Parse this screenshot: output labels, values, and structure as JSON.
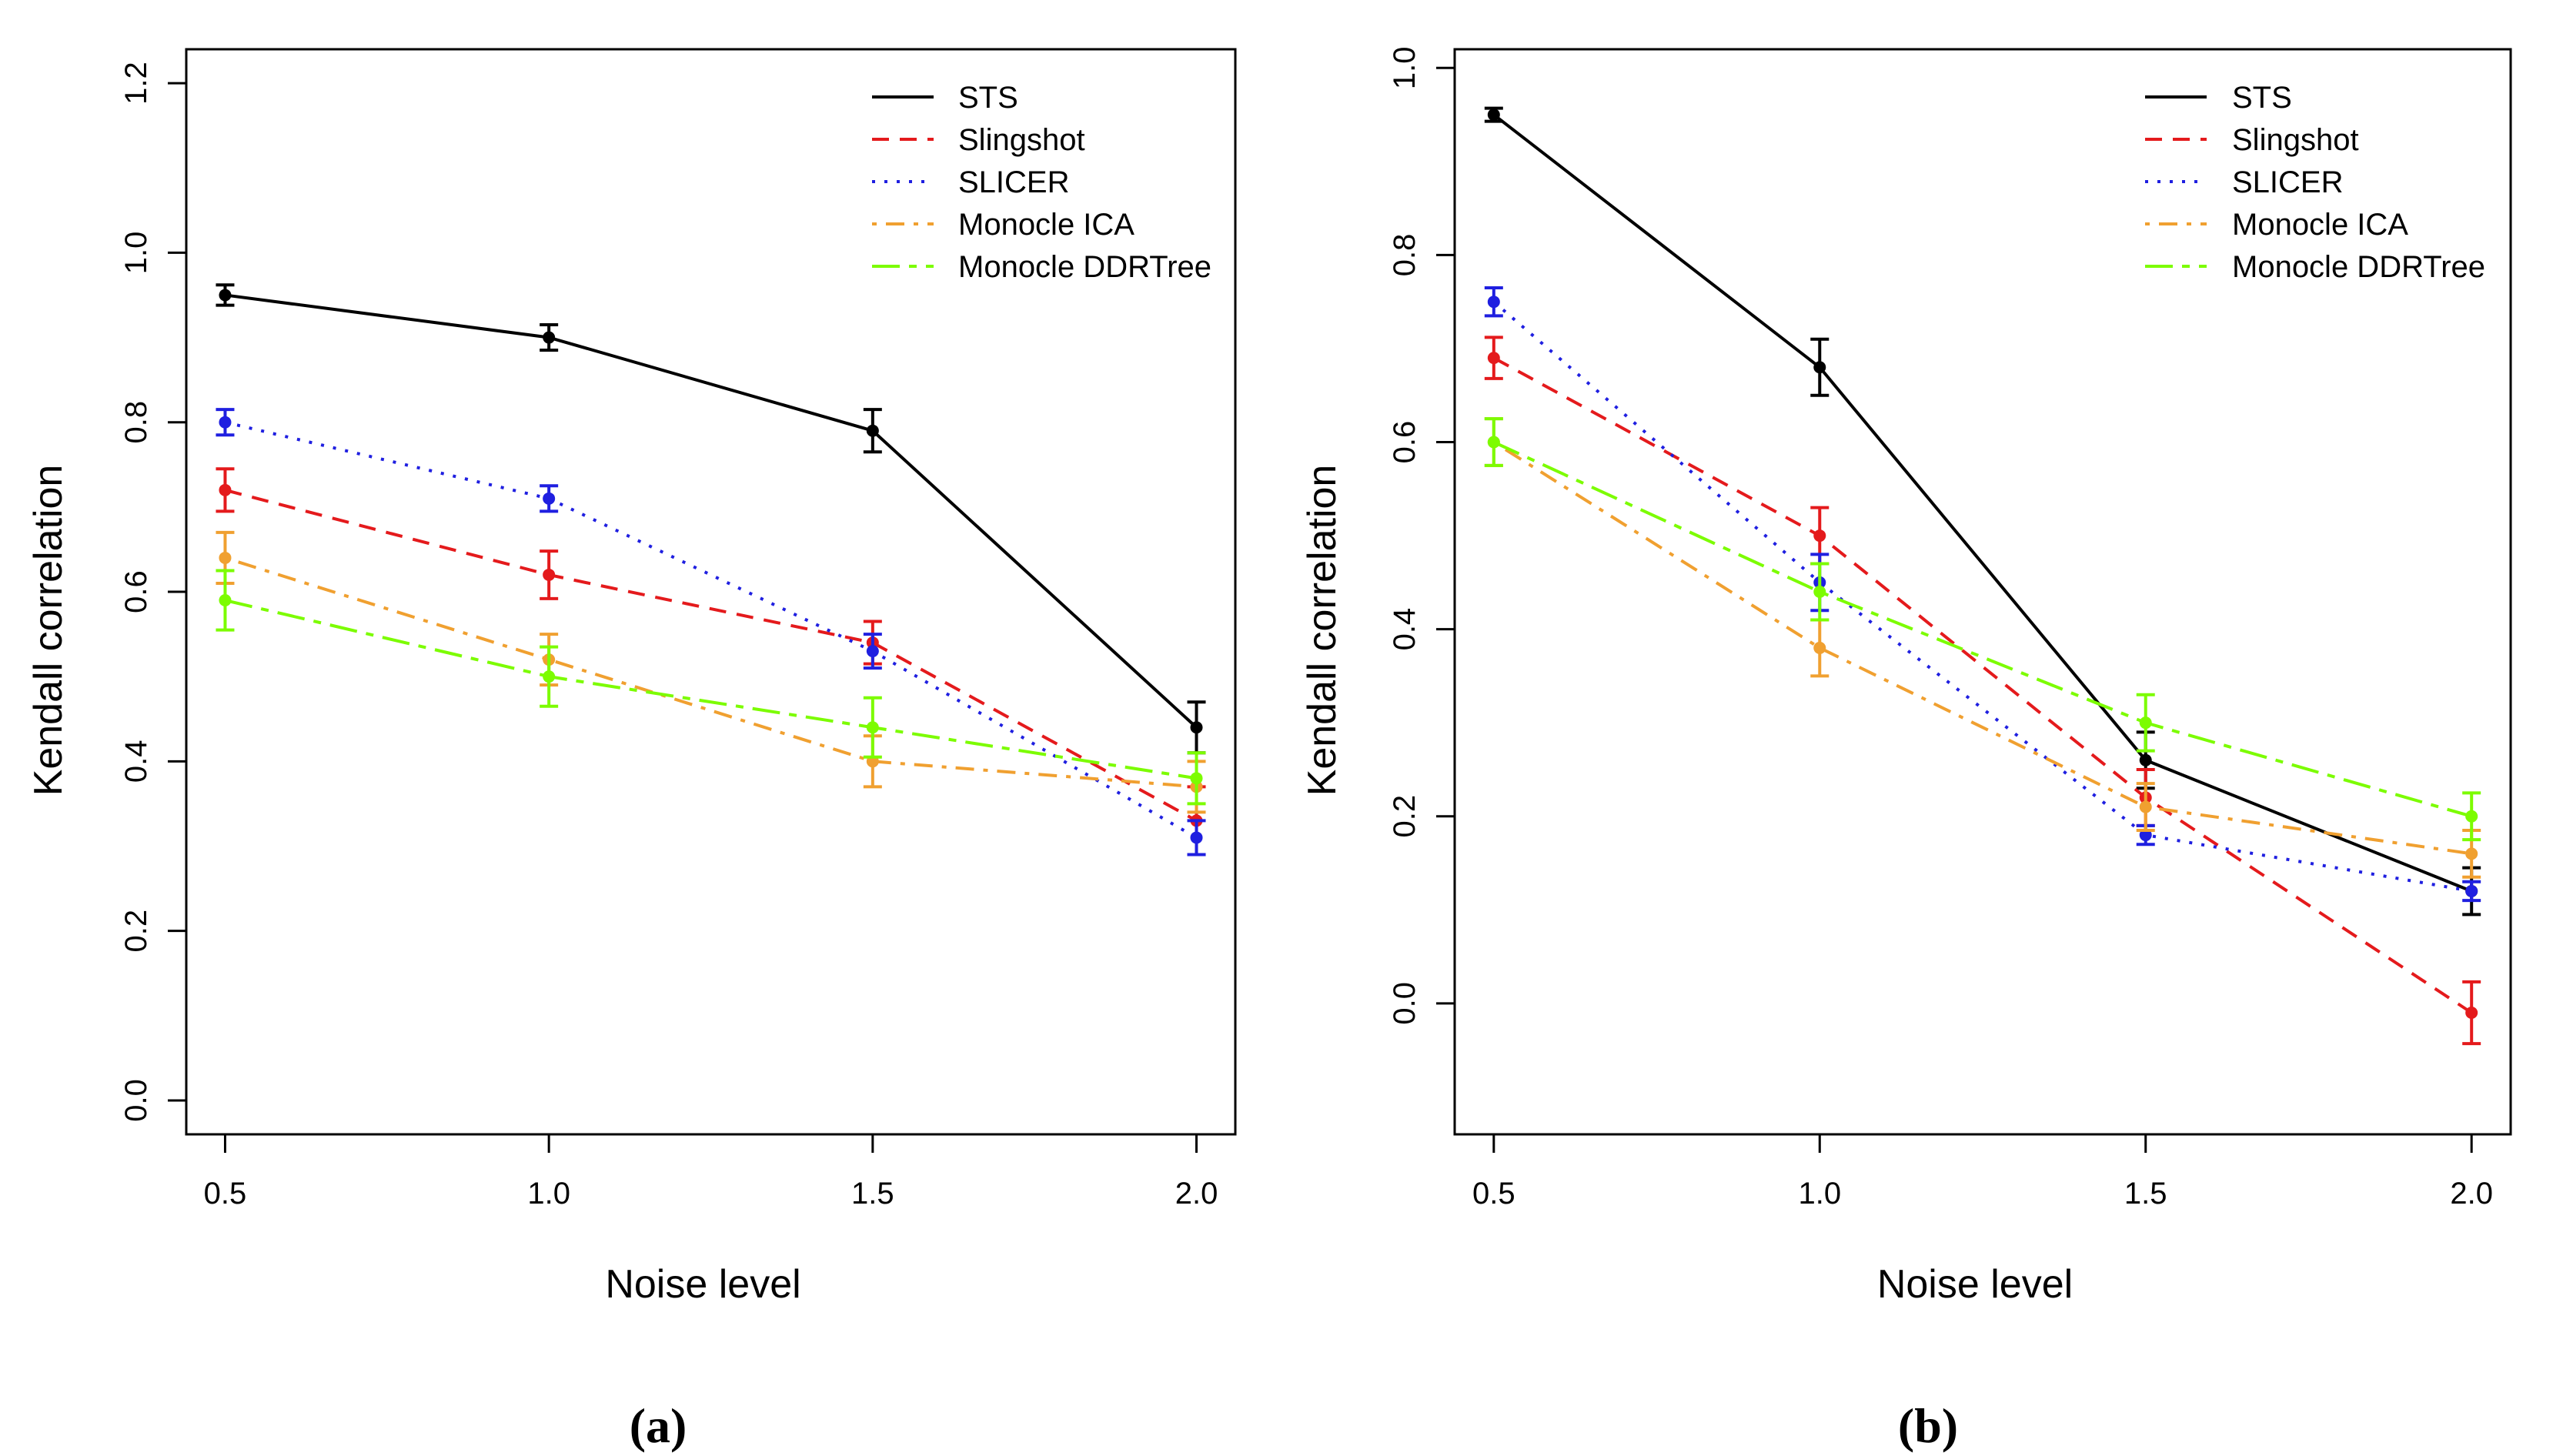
{
  "chart_data": [
    {
      "type": "line",
      "panel_label": "(a)",
      "xlabel": "Noise level",
      "ylabel": "Kendall correlation",
      "x": [
        0.5,
        1.0,
        1.5,
        2.0
      ],
      "x_tick_labels": [
        "0.5",
        "1.0",
        "1.5",
        "2.0"
      ],
      "xlim": [
        0.44,
        2.06
      ],
      "ylim": [
        -0.04,
        1.24
      ],
      "y_ticks": [
        0.0,
        0.2,
        0.4,
        0.6,
        0.8,
        1.0,
        1.2
      ],
      "y_tick_labels": [
        "0.0",
        "0.2",
        "0.4",
        "0.6",
        "0.8",
        "1.0",
        "1.2"
      ],
      "legend_position": "top-right",
      "series": [
        {
          "name": "STS",
          "color": "#000000",
          "dash": "solid",
          "values": [
            0.95,
            0.9,
            0.79,
            0.44
          ],
          "err": [
            0.012,
            0.015,
            0.025,
            0.03
          ]
        },
        {
          "name": "Slingshot",
          "color": "#e41a1c",
          "dash": "dashed",
          "values": [
            0.72,
            0.62,
            0.54,
            0.33
          ],
          "err": [
            0.025,
            0.028,
            0.025,
            0.04
          ]
        },
        {
          "name": "SLICER",
          "color": "#1f1fe0",
          "dash": "dotted",
          "values": [
            0.8,
            0.71,
            0.53,
            0.31
          ],
          "err": [
            0.015,
            0.015,
            0.02,
            0.02
          ]
        },
        {
          "name": "Monocle ICA",
          "color": "#f0a030",
          "dash": "dotdash",
          "values": [
            0.64,
            0.52,
            0.4,
            0.37
          ],
          "err": [
            0.03,
            0.03,
            0.03,
            0.03
          ]
        },
        {
          "name": "Monocle DDRTree",
          "color": "#7cfc00",
          "dash": "longdash",
          "values": [
            0.59,
            0.5,
            0.44,
            0.38
          ],
          "err": [
            0.035,
            0.035,
            0.035,
            0.03
          ]
        }
      ]
    },
    {
      "type": "line",
      "panel_label": "(b)",
      "xlabel": "Noise level",
      "ylabel": "Kendall correlation",
      "x": [
        0.5,
        1.0,
        1.5,
        2.0
      ],
      "x_tick_labels": [
        "0.5",
        "1.0",
        "1.5",
        "2.0"
      ],
      "xlim": [
        0.44,
        2.06
      ],
      "ylim": [
        -0.14,
        1.02
      ],
      "y_ticks": [
        0.0,
        0.2,
        0.4,
        0.6,
        0.8,
        1.0
      ],
      "y_tick_labels": [
        "0.0",
        "0.2",
        "0.4",
        "0.6",
        "0.8",
        "1.0"
      ],
      "legend_position": "top-right",
      "series": [
        {
          "name": "STS",
          "color": "#000000",
          "dash": "solid",
          "values": [
            0.95,
            0.68,
            0.26,
            0.12
          ],
          "err": [
            0.007,
            0.03,
            0.03,
            0.025
          ]
        },
        {
          "name": "Slingshot",
          "color": "#e41a1c",
          "dash": "dashed",
          "values": [
            0.69,
            0.5,
            0.22,
            -0.01
          ],
          "err": [
            0.022,
            0.03,
            0.03,
            0.033
          ]
        },
        {
          "name": "SLICER",
          "color": "#1f1fe0",
          "dash": "dotted",
          "values": [
            0.75,
            0.45,
            0.18,
            0.12
          ],
          "err": [
            0.015,
            0.03,
            0.01,
            0.01
          ]
        },
        {
          "name": "Monocle ICA",
          "color": "#f0a030",
          "dash": "dotdash",
          "values": [
            0.6,
            0.38,
            0.21,
            0.16
          ],
          "err": [
            0.025,
            0.03,
            0.025,
            0.025
          ]
        },
        {
          "name": "Monocle DDRTree",
          "color": "#7cfc00",
          "dash": "longdash",
          "values": [
            0.6,
            0.44,
            0.3,
            0.2
          ],
          "err": [
            0.025,
            0.03,
            0.03,
            0.025
          ]
        }
      ]
    }
  ]
}
